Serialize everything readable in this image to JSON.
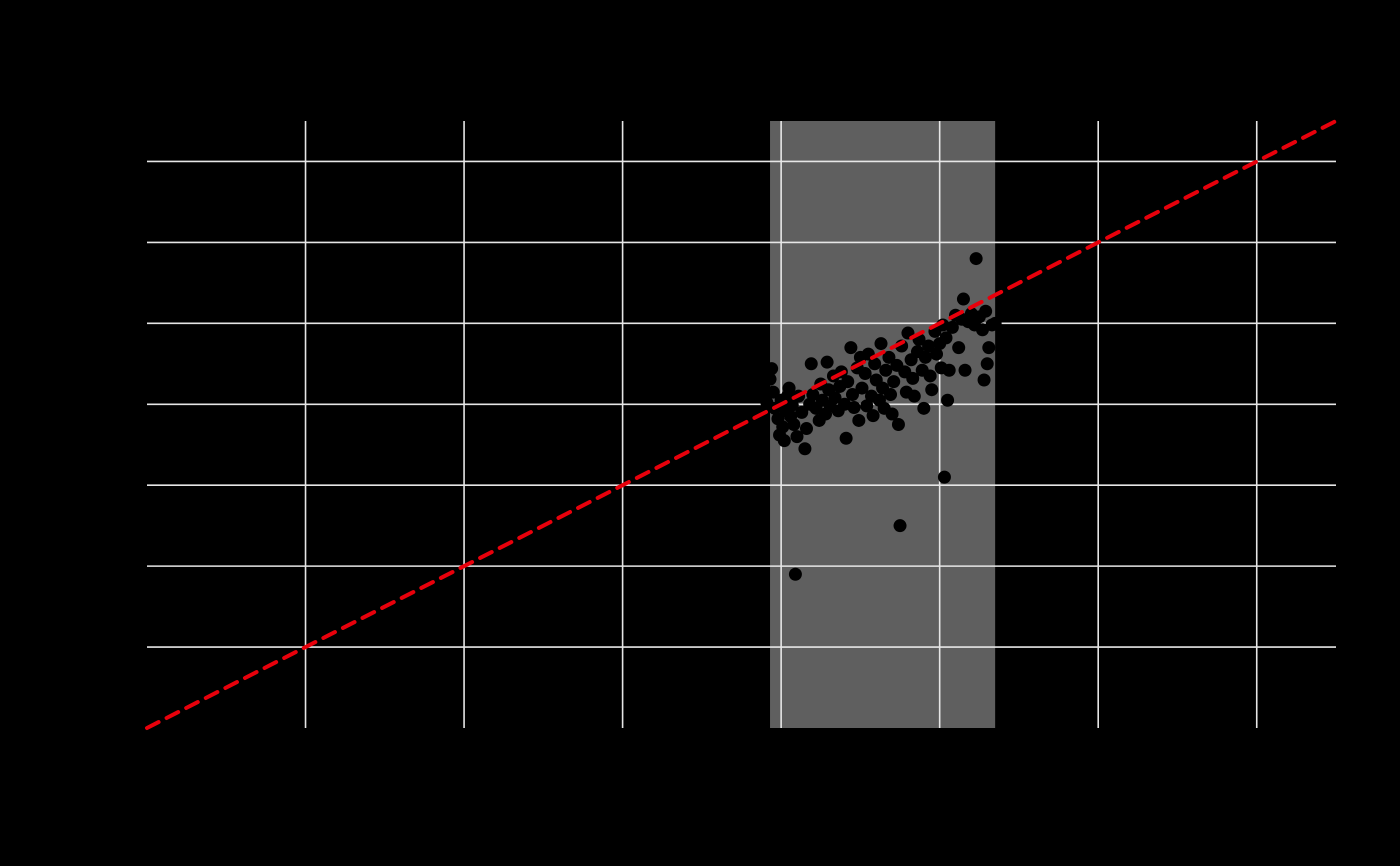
{
  "chart_data": {
    "type": "scatter",
    "title": "",
    "xlabel": "",
    "ylabel": "",
    "xlim": [
      0,
      7.5
    ],
    "ylim": [
      0,
      7.5
    ],
    "grid": true,
    "colors": {
      "background": "#000000",
      "grid": "#e6e6e6",
      "band": "#5f5f5f",
      "points": "#000000",
      "reference_line": "#e8000b"
    },
    "highlight_band": {
      "x_from": 3.93,
      "x_to": 5.35
    },
    "reference_line": {
      "x": [
        0,
        7.5
      ],
      "y": [
        0,
        7.5
      ],
      "style": "dashed"
    },
    "series": [
      {
        "points": [
          [
            3.91,
            4.02
          ],
          [
            3.93,
            4.31
          ],
          [
            3.94,
            4.44
          ],
          [
            3.95,
            4.15
          ],
          [
            3.96,
            3.95
          ],
          [
            3.98,
            3.82
          ],
          [
            3.99,
            3.62
          ],
          [
            4.0,
            4.05
          ],
          [
            4.01,
            3.72
          ],
          [
            4.02,
            3.55
          ],
          [
            4.03,
            3.92
          ],
          [
            4.04,
            4.1
          ],
          [
            4.05,
            4.2
          ],
          [
            4.06,
            3.85
          ],
          [
            4.07,
            3.99
          ],
          [
            4.08,
            3.75
          ],
          [
            4.09,
            1.9
          ],
          [
            4.1,
            3.6
          ],
          [
            4.11,
            4.1
          ],
          [
            4.13,
            3.9
          ],
          [
            4.15,
            3.45
          ],
          [
            4.16,
            3.7
          ],
          [
            4.18,
            4.0
          ],
          [
            4.19,
            4.5
          ],
          [
            4.2,
            4.12
          ],
          [
            4.22,
            3.95
          ],
          [
            4.24,
            3.8
          ],
          [
            4.25,
            4.25
          ],
          [
            4.26,
            4.05
          ],
          [
            4.28,
            3.88
          ],
          [
            4.29,
            4.52
          ],
          [
            4.3,
            4.18
          ],
          [
            4.31,
            3.98
          ],
          [
            4.33,
            4.35
          ],
          [
            4.34,
            4.08
          ],
          [
            4.36,
            3.92
          ],
          [
            4.37,
            4.22
          ],
          [
            4.38,
            4.4
          ],
          [
            4.4,
            4.0
          ],
          [
            4.41,
            3.58
          ],
          [
            4.42,
            4.28
          ],
          [
            4.44,
            4.7
          ],
          [
            4.45,
            4.12
          ],
          [
            4.46,
            3.96
          ],
          [
            4.48,
            4.45
          ],
          [
            4.49,
            3.8
          ],
          [
            4.5,
            4.58
          ],
          [
            4.51,
            4.2
          ],
          [
            4.53,
            4.38
          ],
          [
            4.54,
            3.98
          ],
          [
            4.55,
            4.62
          ],
          [
            4.57,
            4.1
          ],
          [
            4.58,
            3.86
          ],
          [
            4.59,
            4.5
          ],
          [
            4.6,
            4.3
          ],
          [
            4.62,
            4.05
          ],
          [
            4.63,
            4.75
          ],
          [
            4.64,
            4.2
          ],
          [
            4.65,
            3.95
          ],
          [
            4.66,
            4.42
          ],
          [
            4.68,
            4.58
          ],
          [
            4.69,
            4.12
          ],
          [
            4.7,
            3.88
          ],
          [
            4.71,
            4.28
          ],
          [
            4.73,
            4.48
          ],
          [
            4.74,
            3.75
          ],
          [
            4.75,
            2.5
          ],
          [
            4.76,
            4.72
          ],
          [
            4.78,
            4.4
          ],
          [
            4.79,
            4.15
          ],
          [
            4.8,
            4.88
          ],
          [
            4.82,
            4.55
          ],
          [
            4.83,
            4.32
          ],
          [
            4.84,
            4.1
          ],
          [
            4.86,
            4.65
          ],
          [
            4.87,
            4.8
          ],
          [
            4.89,
            4.42
          ],
          [
            4.9,
            3.95
          ],
          [
            4.91,
            4.58
          ],
          [
            4.93,
            4.72
          ],
          [
            4.94,
            4.35
          ],
          [
            4.95,
            4.18
          ],
          [
            4.97,
            4.9
          ],
          [
            4.98,
            4.62
          ],
          [
            5.0,
            4.75
          ],
          [
            5.01,
            4.45
          ],
          [
            5.02,
            4.98
          ],
          [
            5.03,
            3.1
          ],
          [
            5.04,
            4.82
          ],
          [
            5.05,
            4.05
          ],
          [
            5.06,
            4.42
          ],
          [
            5.08,
            4.95
          ],
          [
            5.1,
            5.1
          ],
          [
            5.12,
            4.7
          ],
          [
            5.14,
            5.05
          ],
          [
            5.15,
            5.3
          ],
          [
            5.16,
            4.42
          ],
          [
            5.18,
            5.02
          ],
          [
            5.2,
            5.12
          ],
          [
            5.22,
            4.98
          ],
          [
            5.23,
            5.8
          ],
          [
            5.25,
            5.08
          ],
          [
            5.27,
            4.92
          ],
          [
            5.28,
            4.3
          ],
          [
            5.29,
            5.15
          ],
          [
            5.3,
            4.5
          ],
          [
            5.31,
            4.7
          ],
          [
            5.33,
            4.98
          ],
          [
            5.35,
            5.0
          ]
        ]
      }
    ]
  }
}
